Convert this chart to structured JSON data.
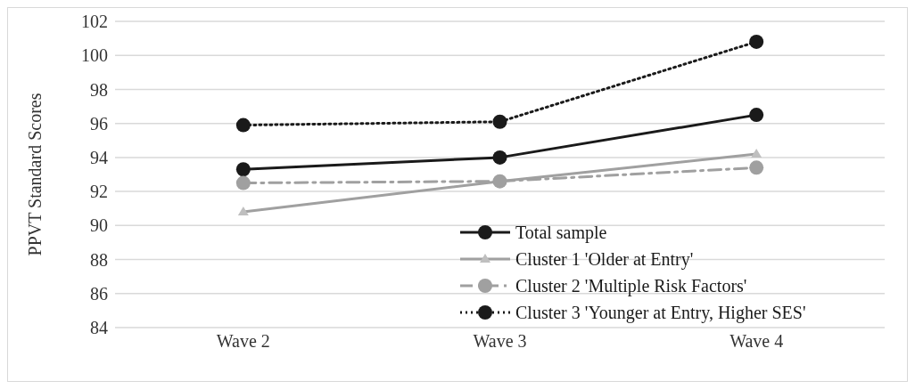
{
  "chart_data": {
    "type": "line",
    "ylabel": "PPVT Standard Scores",
    "categories": [
      "Wave 2",
      "Wave 3",
      "Wave 4"
    ],
    "series": [
      {
        "name": "Total sample",
        "color": "#1a1a1a",
        "values": [
          93.3,
          94.0,
          96.5
        ],
        "marker": "circle",
        "line_style": "solid"
      },
      {
        "name": "Cluster 1 'Older at Entry'",
        "color": "#a0a0a0",
        "values": [
          90.8,
          92.6,
          94.2
        ],
        "marker": "triangle",
        "line_style": "solid"
      },
      {
        "name": "Cluster 2 'Multiple Risk Factors'",
        "color": "#a0a0a0",
        "values": [
          92.5,
          92.6,
          93.4
        ],
        "marker": "circle",
        "line_style": "dashed"
      },
      {
        "name": "Cluster 3 'Younger at Entry, Higher SES'",
        "color": "#1a1a1a",
        "values": [
          95.9,
          96.1,
          100.8
        ],
        "marker": "circle",
        "line_style": "dotted"
      }
    ],
    "ylim": [
      84,
      102
    ],
    "yticks": [
      84,
      86,
      88,
      90,
      92,
      94,
      96,
      98,
      100,
      102
    ],
    "grid": "y",
    "legend": "bottom right"
  }
}
